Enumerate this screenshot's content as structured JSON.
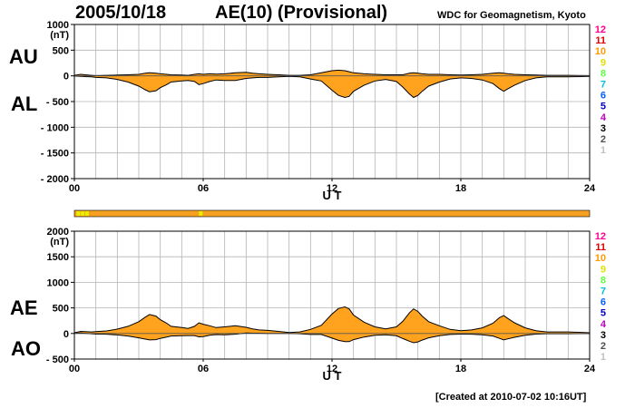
{
  "header": {
    "date": "2005/10/18",
    "title": "AE(10) (Provisional)",
    "source": "WDC for Geomagnetism, Kyoto"
  },
  "footer": {
    "created": "[Created at 2010-07-02 10:16UT]"
  },
  "colors": {
    "fill": "#ffa31f",
    "outline": "#000000",
    "grid": "#b4b4b4",
    "quality_bar": "#f5a020",
    "quality_highlight": "#e8f000",
    "station_scale": [
      "#c0c0c0",
      "#505050",
      "#000000",
      "#c000c0",
      "#0000c0",
      "#0060ff",
      "#00c0e0",
      "#60ff40",
      "#e0e000",
      "#ff9900",
      "#e00000",
      "#ff0090"
    ]
  },
  "station_scale": [
    "1",
    "2",
    "3",
    "4",
    "5",
    "6",
    "7",
    "8",
    "9",
    "10",
    "11",
    "12"
  ],
  "quality_bar": {
    "highlights_hours": [
      0.1,
      0.3,
      0.5,
      5.8
    ]
  },
  "chart_data": [
    {
      "type": "area",
      "name_labels": [
        "AU",
        "AL"
      ],
      "ylabel": "(nT)",
      "xlabel": "U T",
      "xlim": [
        0,
        24
      ],
      "ylim": [
        -2000,
        1000
      ],
      "yticks": [
        1000,
        500,
        0,
        -500,
        -1000,
        -1500,
        -2000
      ],
      "ytick_labels": [
        "1000",
        "500",
        "0",
        "- 500",
        "- 1000",
        "- 1500",
        "- 2000"
      ],
      "xticks": [
        0,
        6,
        12,
        18,
        24
      ],
      "xtick_labels": [
        "00",
        "06",
        "12",
        "18",
        "24"
      ],
      "grid": true,
      "x": [
        0,
        0.3,
        0.5,
        0.8,
        1,
        1.5,
        2,
        2.5,
        3,
        3.3,
        3.5,
        3.8,
        4,
        4.3,
        4.5,
        5,
        5.3,
        5.6,
        5.8,
        6,
        6.3,
        6.6,
        7,
        7.5,
        8,
        8.3,
        8.6,
        9,
        9.5,
        10,
        10.5,
        11,
        11.5,
        12,
        12.3,
        12.6,
        12.8,
        13,
        13.5,
        14,
        14.5,
        15,
        15.3,
        15.6,
        15.8,
        16,
        16.2,
        16.5,
        17,
        17.5,
        18,
        18.5,
        19,
        19.5,
        19.8,
        20,
        20.2,
        20.5,
        21,
        21.5,
        22,
        23,
        24
      ],
      "series": [
        {
          "name": "AU",
          "values": [
            10,
            30,
            20,
            10,
            5,
            10,
            15,
            20,
            30,
            50,
            60,
            50,
            40,
            30,
            20,
            15,
            10,
            30,
            40,
            30,
            40,
            35,
            40,
            60,
            70,
            50,
            40,
            30,
            20,
            10,
            10,
            20,
            60,
            100,
            110,
            100,
            80,
            60,
            40,
            30,
            20,
            20,
            20,
            50,
            60,
            50,
            40,
            30,
            30,
            20,
            15,
            20,
            30,
            50,
            60,
            50,
            40,
            30,
            20,
            15,
            10,
            10,
            5
          ]
        },
        {
          "name": "AL",
          "values": [
            -5,
            -10,
            -15,
            -20,
            -30,
            -40,
            -70,
            -120,
            -200,
            -270,
            -310,
            -290,
            -230,
            -170,
            -120,
            -100,
            -90,
            -110,
            -170,
            -150,
            -110,
            -80,
            -90,
            -90,
            -50,
            -40,
            -30,
            -30,
            -20,
            -10,
            -20,
            -60,
            -100,
            -280,
            -380,
            -420,
            -400,
            -300,
            -180,
            -100,
            -70,
            -110,
            -220,
            -350,
            -420,
            -380,
            -300,
            -200,
            -120,
            -60,
            -40,
            -50,
            -80,
            -150,
            -250,
            -300,
            -250,
            -180,
            -90,
            -40,
            -20,
            -20,
            -10
          ]
        }
      ]
    },
    {
      "type": "area",
      "name_labels": [
        "AE",
        "AO"
      ],
      "ylabel": "(nT)",
      "xlabel": "U T",
      "xlim": [
        0,
        24
      ],
      "ylim": [
        -500,
        2000
      ],
      "yticks": [
        2000,
        1500,
        1000,
        500,
        0,
        -500
      ],
      "ytick_labels": [
        "2000",
        "1500",
        "1000",
        "500",
        "0",
        "- 500"
      ],
      "xticks": [
        0,
        6,
        12,
        18,
        24
      ],
      "xtick_labels": [
        "00",
        "06",
        "12",
        "18",
        "24"
      ],
      "grid": true,
      "x": [
        0,
        0.3,
        0.5,
        0.8,
        1,
        1.5,
        2,
        2.5,
        3,
        3.3,
        3.5,
        3.8,
        4,
        4.3,
        4.5,
        5,
        5.3,
        5.6,
        5.8,
        6,
        6.3,
        6.6,
        7,
        7.5,
        8,
        8.3,
        8.6,
        9,
        9.5,
        10,
        10.5,
        11,
        11.5,
        12,
        12.3,
        12.6,
        12.8,
        13,
        13.5,
        14,
        14.5,
        15,
        15.3,
        15.6,
        15.8,
        16,
        16.2,
        16.5,
        17,
        17.5,
        18,
        18.5,
        19,
        19.5,
        19.8,
        20,
        20.2,
        20.5,
        21,
        21.5,
        22,
        23,
        24
      ],
      "series": [
        {
          "name": "AE",
          "values": [
            15,
            40,
            35,
            30,
            35,
            50,
            85,
            140,
            230,
            320,
            370,
            340,
            270,
            200,
            140,
            115,
            100,
            140,
            210,
            180,
            150,
            115,
            130,
            150,
            120,
            90,
            70,
            60,
            40,
            20,
            30,
            80,
            160,
            380,
            490,
            520,
            480,
            360,
            220,
            130,
            90,
            130,
            240,
            400,
            480,
            430,
            340,
            230,
            150,
            80,
            55,
            70,
            110,
            200,
            310,
            350,
            290,
            210,
            110,
            55,
            30,
            30,
            15
          ]
        },
        {
          "name": "AO",
          "values": [
            2,
            10,
            3,
            -5,
            -12,
            -15,
            -28,
            -50,
            -85,
            -110,
            -125,
            -120,
            -95,
            -70,
            -50,
            -42,
            -40,
            -40,
            -65,
            -60,
            -35,
            -22,
            -25,
            -15,
            10,
            5,
            5,
            0,
            0,
            0,
            -5,
            -20,
            -20,
            -90,
            -135,
            -160,
            -160,
            -120,
            -70,
            -35,
            -25,
            -45,
            -100,
            -150,
            -180,
            -165,
            -130,
            -85,
            -45,
            -20,
            -12,
            -15,
            -25,
            -50,
            -95,
            -125,
            -105,
            -75,
            -35,
            -12,
            -5,
            -5,
            -2
          ]
        }
      ]
    }
  ]
}
